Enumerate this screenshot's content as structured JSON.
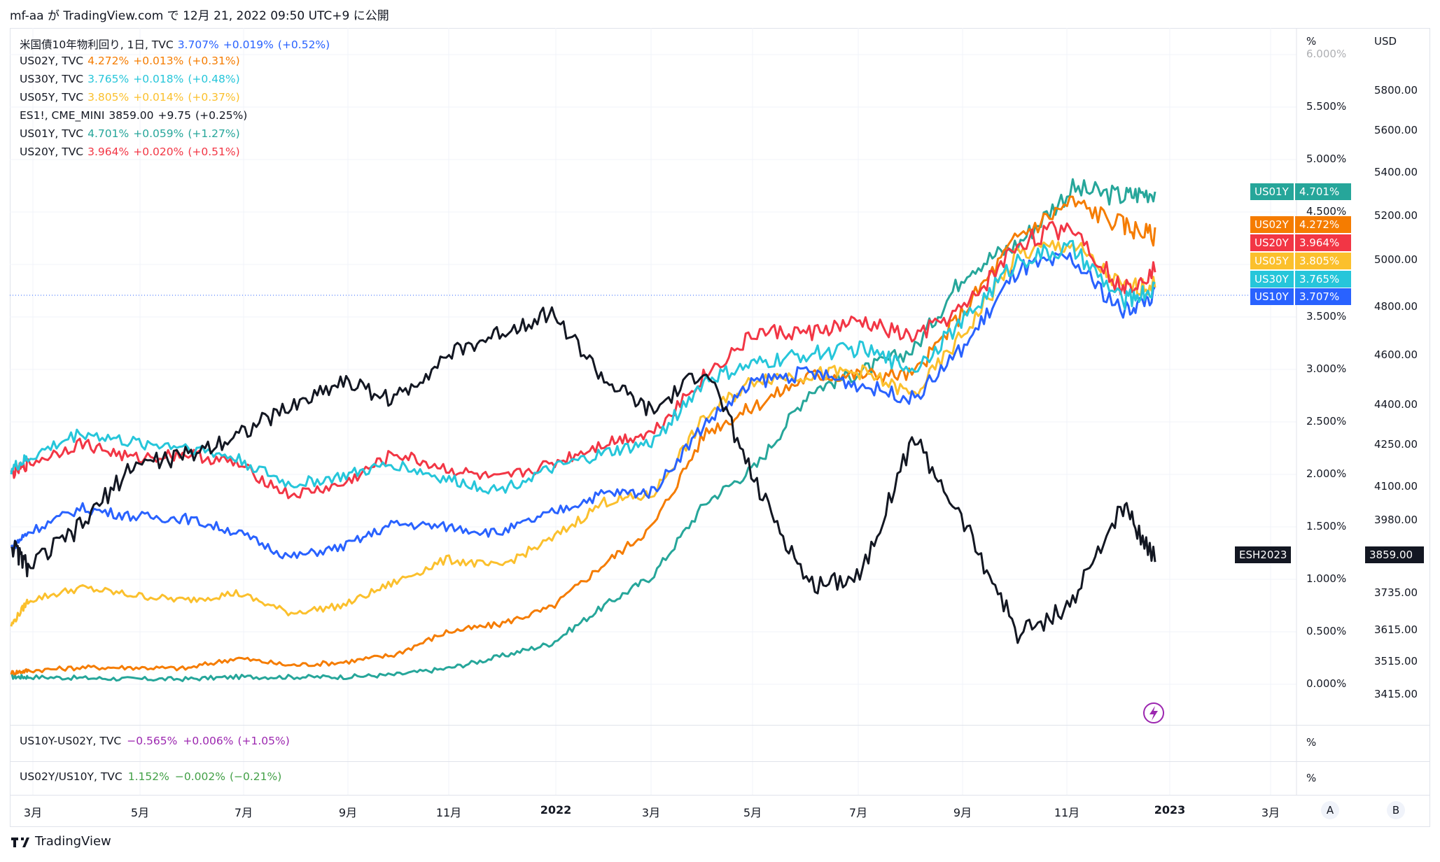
{
  "header": {
    "published": "mf-aa が TradingView.com で 12月 21, 2022 09:50 UTC+9 に公開"
  },
  "legend": [
    {
      "name": "米国債10年物利回り, 1日, TVC",
      "value": "3.707%",
      "change": "+0.019%",
      "pct": "(+0.52%)",
      "color": "#2962ff",
      "nameColor": "#131722"
    },
    {
      "name": "US02Y, TVC",
      "value": "4.272%",
      "change": "+0.013%",
      "pct": "(+0.31%)",
      "color": "#f57c00",
      "nameColor": "#131722"
    },
    {
      "name": "US30Y, TVC",
      "value": "3.765%",
      "change": "+0.018%",
      "pct": "(+0.48%)",
      "color": "#26c6da",
      "nameColor": "#131722"
    },
    {
      "name": "US05Y, TVC",
      "value": "3.805%",
      "change": "+0.014%",
      "pct": "(+0.37%)",
      "color": "#fbc02d",
      "nameColor": "#131722"
    },
    {
      "name": "ES1!, CME_MINI",
      "value": "3859.00",
      "change": "+9.75",
      "pct": "(+0.25%)",
      "color": "#131722",
      "nameColor": "#131722"
    },
    {
      "name": "US01Y, TVC",
      "value": "4.701%",
      "change": "+0.059%",
      "pct": "(+1.27%)",
      "color": "#26a69a",
      "nameColor": "#131722"
    },
    {
      "name": "US20Y, TVC",
      "value": "3.964%",
      "change": "+0.020%",
      "pct": "(+0.51%)",
      "color": "#f23645",
      "nameColor": "#131722"
    }
  ],
  "tags": [
    {
      "label": "US01Y",
      "value": "4.701%",
      "color": "#26a69a"
    },
    {
      "label": "US02Y",
      "value": "4.272%",
      "color": "#f57c00"
    },
    {
      "label": "US20Y",
      "value": "3.964%",
      "color": "#f23645"
    },
    {
      "label": "US05Y",
      "value": "3.805%",
      "color": "#fbc02d"
    },
    {
      "label": "US30Y",
      "value": "3.765%",
      "color": "#26c6da"
    },
    {
      "label": "US10Y",
      "value": "3.707%",
      "color": "#2962ff"
    }
  ],
  "es_tag": {
    "label": "ESH2023",
    "value": "3859.00"
  },
  "subpanes": [
    {
      "name": "US10Y-US02Y, TVC",
      "value": "−0.565%",
      "change": "+0.006%",
      "pct": "(+1.05%)",
      "color": "#9c27b0",
      "unit": "%"
    },
    {
      "name": "US02Y/US10Y, TVC",
      "value": "1.152%",
      "change": "−0.002%",
      "pct": "(−0.21%)",
      "color": "#43a047",
      "unit": "%"
    }
  ],
  "axis": {
    "pct_unit": "%",
    "usd_unit": "USD",
    "pct_ticks": [
      "6.000%",
      "5.500%",
      "5.000%",
      "4.500%",
      "4.000%",
      "3.500%",
      "3.000%",
      "2.500%",
      "2.000%",
      "1.500%",
      "1.000%",
      "0.500%",
      "0.000%"
    ],
    "usd_ticks": [
      "5800.00",
      "5600.00",
      "5400.00",
      "5200.00",
      "5000.00",
      "4800.00",
      "4600.00",
      "4400.00",
      "4250.00",
      "4100.00",
      "3980.00",
      "3859.00",
      "3735.00",
      "3615.00",
      "3515.00",
      "3415.00"
    ],
    "x_ticks": [
      {
        "label": "3月",
        "bold": false
      },
      {
        "label": "5月",
        "bold": false
      },
      {
        "label": "7月",
        "bold": false
      },
      {
        "label": "9月",
        "bold": false
      },
      {
        "label": "11月",
        "bold": false
      },
      {
        "label": "2022",
        "bold": true
      },
      {
        "label": "3月",
        "bold": false
      },
      {
        "label": "5月",
        "bold": false
      },
      {
        "label": "7月",
        "bold": false
      },
      {
        "label": "9月",
        "bold": false
      },
      {
        "label": "11月",
        "bold": false
      },
      {
        "label": "2023",
        "bold": true
      },
      {
        "label": "3月",
        "bold": false
      }
    ],
    "scale_buttons": [
      "A",
      "B"
    ]
  },
  "footer": {
    "brand": "TradingView"
  },
  "chart_data": {
    "type": "line",
    "x": [
      "2021-02-19",
      "2021-03-01",
      "2021-04-01",
      "2021-05-01",
      "2021-06-01",
      "2021-07-01",
      "2021-08-01",
      "2021-09-01",
      "2021-10-01",
      "2021-11-01",
      "2021-12-01",
      "2022-01-01",
      "2022-02-01",
      "2022-03-01",
      "2022-04-01",
      "2022-05-01",
      "2022-06-01",
      "2022-07-01",
      "2022-08-01",
      "2022-09-01",
      "2022-10-01",
      "2022-11-01",
      "2022-12-01",
      "2022-12-20"
    ],
    "y_axis_left": {
      "label": "%",
      "range": [
        0,
        6
      ]
    },
    "y_axis_right": {
      "label": "USD",
      "range": [
        3415,
        5800
      ]
    },
    "series": [
      {
        "name": "US01Y",
        "color": "#26a69a",
        "values": [
          0.07,
          0.07,
          0.06,
          0.05,
          0.05,
          0.07,
          0.07,
          0.07,
          0.09,
          0.15,
          0.26,
          0.39,
          0.75,
          1.03,
          1.73,
          2.08,
          2.8,
          2.98,
          3.19,
          3.95,
          4.2,
          4.72,
          4.65,
          4.7
        ]
      },
      {
        "name": "US02Y",
        "color": "#f57c00",
        "values": [
          0.11,
          0.13,
          0.16,
          0.16,
          0.15,
          0.25,
          0.18,
          0.21,
          0.28,
          0.5,
          0.57,
          0.73,
          1.15,
          1.5,
          2.4,
          2.66,
          2.94,
          2.95,
          2.95,
          3.6,
          4.27,
          4.6,
          4.38,
          4.27
        ]
      },
      {
        "name": "US05Y",
        "color": "#fbc02d",
        "values": [
          0.56,
          0.8,
          0.92,
          0.85,
          0.8,
          0.87,
          0.68,
          0.75,
          0.97,
          1.19,
          1.12,
          1.38,
          1.74,
          1.8,
          2.55,
          2.92,
          2.95,
          2.98,
          2.75,
          3.38,
          4.1,
          4.2,
          3.78,
          3.8
        ]
      },
      {
        "name": "US10Y",
        "color": "#2962ff",
        "values": [
          1.3,
          1.45,
          1.68,
          1.6,
          1.58,
          1.45,
          1.21,
          1.31,
          1.53,
          1.5,
          1.44,
          1.63,
          1.82,
          1.83,
          2.49,
          2.89,
          2.97,
          2.85,
          2.72,
          3.25,
          3.95,
          4.05,
          3.55,
          3.71
        ]
      },
      {
        "name": "US20Y",
        "color": "#f23645",
        "values": [
          2.0,
          2.1,
          2.3,
          2.15,
          2.2,
          2.1,
          1.8,
          1.9,
          2.2,
          2.05,
          1.95,
          2.1,
          2.3,
          2.4,
          2.95,
          3.35,
          3.35,
          3.45,
          3.3,
          3.6,
          4.2,
          4.38,
          3.75,
          3.96
        ]
      },
      {
        "name": "US30Y",
        "color": "#26c6da",
        "values": [
          2.05,
          2.15,
          2.4,
          2.3,
          2.27,
          2.15,
          1.9,
          1.98,
          2.1,
          1.95,
          1.85,
          2.05,
          2.2,
          2.3,
          2.9,
          3.05,
          3.15,
          3.2,
          3.0,
          3.5,
          4.05,
          4.15,
          3.65,
          3.77
        ]
      },
      {
        "name": "ES1!",
        "axis": "right",
        "color": "#131722",
        "values": [
          3900,
          3820,
          3960,
          4180,
          4210,
          4290,
          4390,
          4500,
          4420,
          4600,
          4690,
          4780,
          4500,
          4370,
          4550,
          4100,
          3760,
          3800,
          4280,
          3950,
          3600,
          3700,
          4030,
          3859
        ]
      }
    ]
  }
}
